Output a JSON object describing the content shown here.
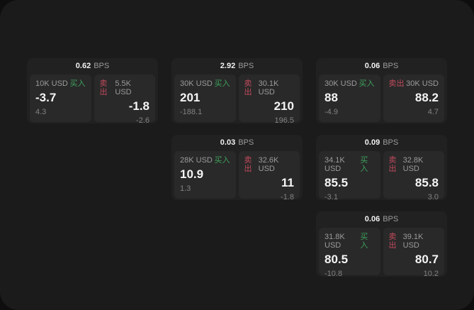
{
  "labels": {
    "buy": "买入",
    "sell": "卖出",
    "bps": "BPS"
  },
  "colors": {
    "buy_green": "#3ea15c",
    "sell_red": "#c04a5c",
    "surface": "#1b1b1c",
    "card": "#212121",
    "panel": "#292929"
  },
  "cards": [
    {
      "bps": "0.62",
      "left": {
        "amount": "10K USD",
        "big": "-3.7",
        "small": "4.3"
      },
      "right": {
        "amount": "5.5K USD",
        "big": "-1.8",
        "small": "-2.6"
      }
    },
    {
      "bps": "2.92",
      "left": {
        "amount": "30K USD",
        "big": "201",
        "small": "-188.1"
      },
      "right": {
        "amount": "30.1K USD",
        "big": "210",
        "small": "196.5"
      }
    },
    {
      "bps": "0.06",
      "left": {
        "amount": "30K USD",
        "big": "88",
        "small": "-4.9"
      },
      "right": {
        "amount": "30K USD",
        "big": "88.2",
        "small": "4.7"
      }
    },
    {
      "bps": "0.03",
      "left": {
        "amount": "28K USD",
        "big": "10.9",
        "small": "1.3"
      },
      "right": {
        "amount": "32.6K USD",
        "big": "11",
        "small": "-1.8"
      }
    },
    {
      "bps": "0.09",
      "left": {
        "amount": "34.1K USD",
        "big": "85.5",
        "small": "-3.1"
      },
      "right": {
        "amount": "32.8K USD",
        "big": "85.8",
        "small": "3.0"
      }
    },
    {
      "bps": "0.06",
      "left": {
        "amount": "31.8K USD",
        "big": "80.5",
        "small": "-10.8"
      },
      "right": {
        "amount": "39.1K USD",
        "big": "80.7",
        "small": "10.2"
      }
    }
  ]
}
